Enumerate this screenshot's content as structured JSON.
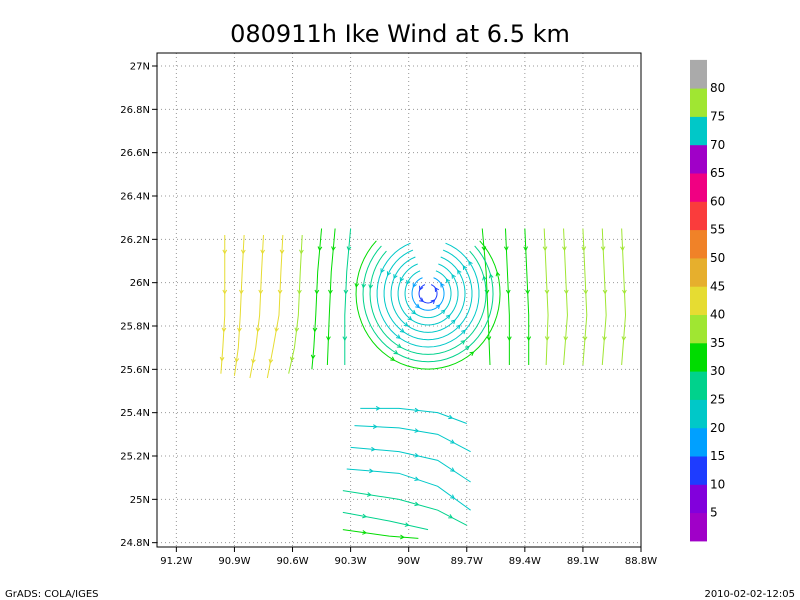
{
  "chart_data": {
    "type": "streamline",
    "title": "080911h Ike Wind at 6.5 km",
    "xlabel": "",
    "ylabel": "",
    "xlim": [
      -91.3,
      -88.8
    ],
    "ylim": [
      24.78,
      27.06
    ],
    "grid": true,
    "x_ticks": [
      {
        "value": -91.2,
        "label": "91.2W"
      },
      {
        "value": -90.9,
        "label": "90.9W"
      },
      {
        "value": -90.6,
        "label": "90.6W"
      },
      {
        "value": -90.3,
        "label": "90.3W"
      },
      {
        "value": -90.0,
        "label": "90W"
      },
      {
        "value": -89.7,
        "label": "89.7W"
      },
      {
        "value": -89.4,
        "label": "89.4W"
      },
      {
        "value": -89.1,
        "label": "89.1W"
      },
      {
        "value": -88.8,
        "label": "88.8W"
      }
    ],
    "y_ticks": [
      {
        "value": 24.8,
        "label": "24.8N"
      },
      {
        "value": 25.0,
        "label": "25N"
      },
      {
        "value": 25.2,
        "label": "25.2N"
      },
      {
        "value": 25.4,
        "label": "25.4N"
      },
      {
        "value": 25.6,
        "label": "25.6N"
      },
      {
        "value": 25.8,
        "label": "25.8N"
      },
      {
        "value": 26.0,
        "label": "26N"
      },
      {
        "value": 26.2,
        "label": "26.2N"
      },
      {
        "value": 26.4,
        "label": "26.4N"
      },
      {
        "value": 26.6,
        "label": "26.6N"
      },
      {
        "value": 26.8,
        "label": "26.8N"
      },
      {
        "value": 27.0,
        "label": "27N"
      }
    ],
    "colorbar": {
      "placement": "right",
      "bins": [
        {
          "label": "",
          "color": "#a000c8"
        },
        {
          "label": "5",
          "color": "#8200dc"
        },
        {
          "label": "10",
          "color": "#1e3cff"
        },
        {
          "label": "15",
          "color": "#00a0ff"
        },
        {
          "label": "20",
          "color": "#00c8c8"
        },
        {
          "label": "25",
          "color": "#00d28c"
        },
        {
          "label": "30",
          "color": "#00dc00"
        },
        {
          "label": "35",
          "color": "#a0e632"
        },
        {
          "label": "40",
          "color": "#e6dc32"
        },
        {
          "label": "45",
          "color": "#e6af2d"
        },
        {
          "label": "50",
          "color": "#f08228"
        },
        {
          "label": "55",
          "color": "#fa3c3c"
        },
        {
          "label": "60",
          "color": "#f00082"
        },
        {
          "label": "65",
          "color": "#a000c8"
        },
        {
          "label": "70",
          "color": "#00c8c8"
        },
        {
          "label": "75",
          "color": "#a0e632"
        },
        {
          "label": "80",
          "color": "#aaaaaa"
        }
      ]
    },
    "vortex_center": {
      "lon": -89.9,
      "lat": 25.95
    },
    "streamlines": [
      {
        "name": "",
        "lon": [
          -90.95,
          -90.95,
          -90.95,
          -90.96,
          -90.97
        ],
        "lat": [
          26.22,
          26.05,
          25.85,
          25.7,
          25.58
        ],
        "color": "#e6dc32"
      },
      {
        "name": "",
        "lon": [
          -90.85,
          -90.86,
          -90.87,
          -90.88,
          -90.9
        ],
        "lat": [
          26.22,
          26.05,
          25.85,
          25.7,
          25.57
        ],
        "color": "#e6dc32"
      },
      {
        "name": "",
        "lon": [
          -90.75,
          -90.76,
          -90.77,
          -90.79,
          -90.82
        ],
        "lat": [
          26.22,
          26.05,
          25.85,
          25.7,
          25.56
        ],
        "color": "#e6dc32"
      },
      {
        "name": "",
        "lon": [
          -90.65,
          -90.66,
          -90.67,
          -90.7,
          -90.73
        ],
        "lat": [
          26.22,
          26.05,
          25.85,
          25.7,
          25.56
        ],
        "color": "#e6dc32"
      },
      {
        "name": "",
        "lon": [
          -90.55,
          -90.56,
          -90.57,
          -90.59,
          -90.62
        ],
        "lat": [
          26.22,
          26.05,
          25.85,
          25.7,
          25.58
        ],
        "color": "#a0e632"
      },
      {
        "name": "",
        "lon": [
          -90.45,
          -90.47,
          -90.48,
          -90.49,
          -90.5
        ],
        "lat": [
          26.25,
          26.05,
          25.85,
          25.7,
          25.6
        ],
        "color": "#00dc00"
      },
      {
        "name": "",
        "lon": [
          -90.38,
          -90.4,
          -90.41,
          -90.42
        ],
        "lat": [
          26.25,
          26.05,
          25.85,
          25.62
        ],
        "color": "#00dc00"
      },
      {
        "name": "",
        "lon": [
          -90.3,
          -90.32,
          -90.33,
          -90.33
        ],
        "lat": [
          26.25,
          26.05,
          25.85,
          25.62
        ],
        "color": "#00d28c"
      },
      {
        "name": "",
        "lon": [
          -89.62,
          -89.6,
          -89.59,
          -89.58
        ],
        "lat": [
          26.25,
          26.05,
          25.85,
          25.62
        ],
        "color": "#00dc00"
      },
      {
        "name": "",
        "lon": [
          -89.5,
          -89.49,
          -89.48,
          -89.48
        ],
        "lat": [
          26.25,
          26.05,
          25.85,
          25.62
        ],
        "color": "#00dc00"
      },
      {
        "name": "",
        "lon": [
          -89.4,
          -89.39,
          -89.38,
          -89.38
        ],
        "lat": [
          26.25,
          26.05,
          25.85,
          25.62
        ],
        "color": "#00dc00"
      },
      {
        "name": "",
        "lon": [
          -89.3,
          -89.29,
          -89.28,
          -89.29
        ],
        "lat": [
          26.25,
          26.05,
          25.85,
          25.62
        ],
        "color": "#a0e632"
      },
      {
        "name": "",
        "lon": [
          -89.2,
          -89.19,
          -89.18,
          -89.2
        ],
        "lat": [
          26.25,
          26.05,
          25.85,
          25.62
        ],
        "color": "#a0e632"
      },
      {
        "name": "",
        "lon": [
          -89.1,
          -89.09,
          -89.08,
          -89.1
        ],
        "lat": [
          26.25,
          26.05,
          25.85,
          25.62
        ],
        "color": "#a0e632"
      },
      {
        "name": "",
        "lon": [
          -89.0,
          -88.99,
          -88.98,
          -89.0
        ],
        "lat": [
          26.25,
          26.05,
          25.85,
          25.62
        ],
        "color": "#a0e632"
      },
      {
        "name": "",
        "lon": [
          -88.9,
          -88.89,
          -88.88,
          -88.9
        ],
        "lat": [
          26.25,
          26.05,
          25.85,
          25.62
        ],
        "color": "#a0e632"
      },
      {
        "name": "",
        "lon": [
          -90.25,
          -90.05,
          -89.85,
          -89.7
        ],
        "lat": [
          25.42,
          25.42,
          25.4,
          25.35
        ],
        "color": "#00c8c8"
      },
      {
        "name": "",
        "lon": [
          -90.28,
          -90.05,
          -89.85,
          -89.68
        ],
        "lat": [
          25.34,
          25.33,
          25.3,
          25.22
        ],
        "color": "#00c8c8"
      },
      {
        "name": "",
        "lon": [
          -90.3,
          -90.05,
          -89.85,
          -89.68
        ],
        "lat": [
          25.24,
          25.22,
          25.18,
          25.08
        ],
        "color": "#00c8c8"
      },
      {
        "name": "",
        "lon": [
          -90.32,
          -90.05,
          -89.85,
          -89.68
        ],
        "lat": [
          25.14,
          25.12,
          25.06,
          24.95
        ],
        "color": "#00c8c8"
      },
      {
        "name": "",
        "lon": [
          -90.34,
          -90.05,
          -89.85,
          -89.7
        ],
        "lat": [
          25.04,
          25.0,
          24.95,
          24.88
        ],
        "color": "#00d28c"
      },
      {
        "name": "",
        "lon": [
          -90.34,
          -90.1,
          -89.9
        ],
        "lat": [
          24.94,
          24.9,
          24.86
        ],
        "color": "#00d28c"
      },
      {
        "name": "",
        "lon": [
          -90.34,
          -90.1,
          -89.95
        ],
        "lat": [
          24.86,
          24.83,
          24.82
        ],
        "color": "#00dc00"
      }
    ]
  },
  "footer": {
    "left": "GrADS: COLA/IGES",
    "right": "2010-02-02-12:05"
  }
}
